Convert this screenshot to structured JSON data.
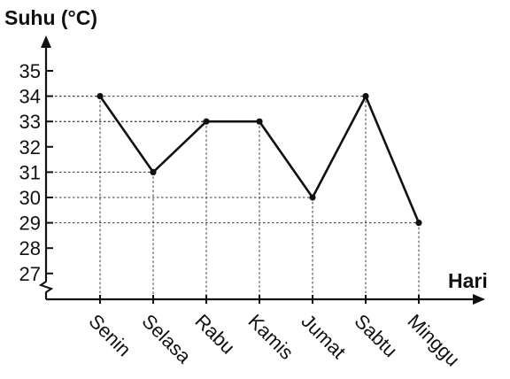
{
  "chart_data": {
    "type": "line",
    "ylabel": "Suhu (°C)",
    "xlabel": "Hari",
    "categories": [
      "Senin",
      "Selasa",
      "Rabu",
      "Kamis",
      "Jumat",
      "Sabtu",
      "Minggu"
    ],
    "values": [
      34,
      31,
      33,
      33,
      30,
      34,
      29
    ],
    "yticks": [
      "35",
      "34",
      "33",
      "32",
      "31",
      "30",
      "29",
      "28",
      "27"
    ],
    "ylim": [
      27,
      35
    ],
    "axis_break": true,
    "grid": "dashed drop lines from each point to both axes",
    "colors": {
      "line": "#111111",
      "grid": "#333333"
    }
  }
}
